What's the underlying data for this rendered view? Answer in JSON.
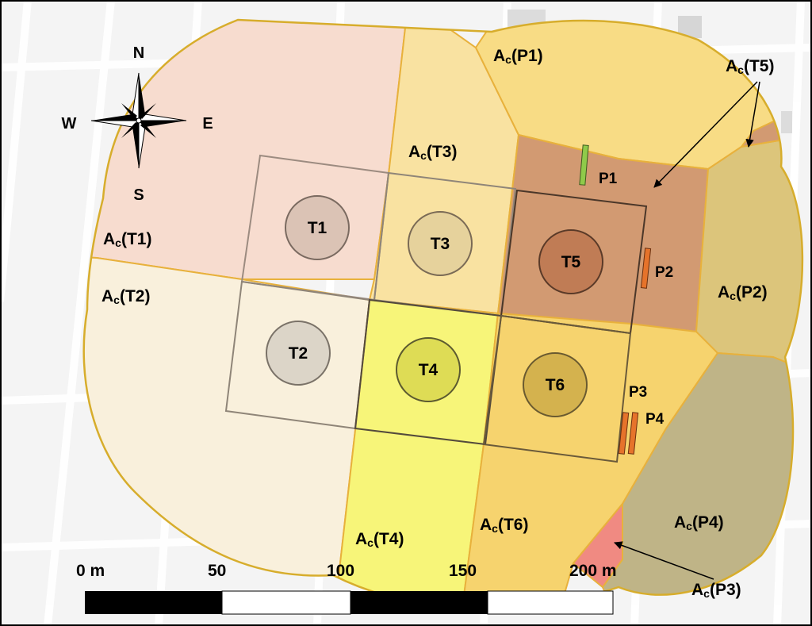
{
  "map": {
    "zone_labels": {
      "t1": {
        "main": "A",
        "sub": "c",
        "tail": "(T1)"
      },
      "t2": {
        "main": "A",
        "sub": "c",
        "tail": "(T2)"
      },
      "t3": {
        "main": "A",
        "sub": "c",
        "tail": "(T3)"
      },
      "t4": {
        "main": "A",
        "sub": "c",
        "tail": "(T4)"
      },
      "t5": {
        "main": "A",
        "sub": "c",
        "tail": "(T5)"
      },
      "t6": {
        "main": "A",
        "sub": "c",
        "tail": "(T6)"
      },
      "p1": {
        "main": "A",
        "sub": "c",
        "tail": "(P1)"
      },
      "p2": {
        "main": "A",
        "sub": "c",
        "tail": "(P2)"
      },
      "p3": {
        "main": "A",
        "sub": "c",
        "tail": "(P3)"
      },
      "p4": {
        "main": "A",
        "sub": "c",
        "tail": "(P4)"
      }
    },
    "towers": [
      "T1",
      "T2",
      "T3",
      "T4",
      "T5",
      "T6"
    ],
    "panels": [
      "P1",
      "P2",
      "P3",
      "P4"
    ],
    "compass": {
      "n": "N",
      "s": "S",
      "e": "E",
      "w": "W"
    },
    "scale": {
      "labels": [
        "0 m",
        "50",
        "100",
        "150",
        "200 m"
      ]
    },
    "colors": {
      "zone_t1": "#f7dccf",
      "zone_t2": "#f9f0dc",
      "zone_t3": "#f9e2a1",
      "zone_t4": "#f7f579",
      "zone_t5": "#d29a72",
      "zone_t6": "#f6d36e",
      "zone_p1": "#f8dc85",
      "zone_p2": "#dcc57b",
      "zone_p3": "#f08a82",
      "zone_p4": "#bfb487",
      "border": "#d7ad2c",
      "panel_p1": "#8fca4a",
      "panel_p2_p4": "#e6732b"
    }
  }
}
